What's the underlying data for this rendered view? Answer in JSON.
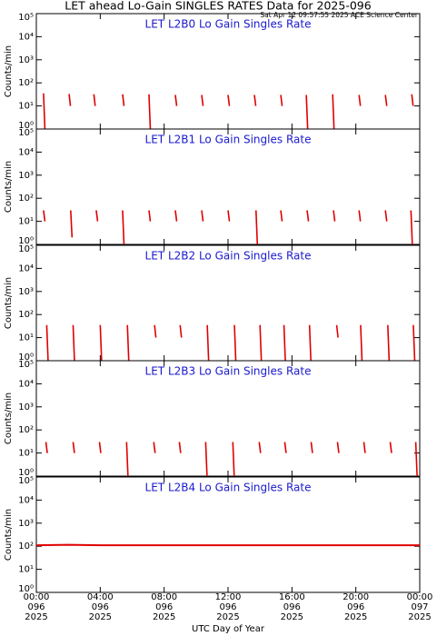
{
  "figure": {
    "title": "LET ahead Lo-Gain SINGLES RATES Data for 2025-096",
    "timestamp": "Sat Apr 12 09:57:55 2025 ACE Science Center",
    "xlabel": "UTC Day of Year"
  },
  "chart_data": [
    {
      "type": "spike",
      "title": "LET L2B0 Lo Gain Singles Rate",
      "ylabel": "Counts/min",
      "log": true,
      "xlim": [
        0,
        24
      ],
      "ylim": [
        1,
        100000
      ],
      "yticks": [
        {
          "value": 1,
          "label": "10⁰"
        },
        {
          "value": 10,
          "label": "10¹"
        },
        {
          "value": 100,
          "label": "10²"
        },
        {
          "value": 1000,
          "label": "10³"
        },
        {
          "value": 10000,
          "label": "10⁴"
        },
        {
          "value": 100000,
          "label": "10⁵"
        }
      ],
      "series": [
        {
          "color": "#e00000",
          "x": [
            0.45,
            2.05,
            3.6,
            5.4,
            7.05,
            8.7,
            10.35,
            12.0,
            13.65,
            15.3,
            16.9,
            18.55,
            20.2,
            21.85,
            23.5
          ],
          "values": [
            35,
            33,
            32,
            32,
            32,
            30,
            30,
            30,
            30,
            30,
            30,
            32,
            30,
            30,
            32
          ],
          "lows": [
            1,
            10,
            10,
            10,
            1,
            10,
            10,
            10,
            10,
            10,
            1,
            1,
            10,
            10,
            10
          ]
        }
      ]
    },
    {
      "type": "spike",
      "title": "LET L2B1 Lo Gain Singles Rate",
      "ylabel": "Counts/min",
      "log": true,
      "xlim": [
        0,
        24
      ],
      "ylim": [
        1,
        100000
      ],
      "yticks": [
        {
          "value": 1,
          "label": "10⁰"
        },
        {
          "value": 10,
          "label": "10¹"
        },
        {
          "value": 100,
          "label": "10²"
        },
        {
          "value": 1000,
          "label": "10³"
        },
        {
          "value": 10000,
          "label": "10⁴"
        },
        {
          "value": 100000,
          "label": "10⁵"
        }
      ],
      "series": [
        {
          "color": "#e00000",
          "x": [
            0.45,
            2.15,
            3.75,
            5.4,
            7.05,
            8.7,
            10.35,
            12.0,
            13.75,
            15.3,
            16.95,
            18.6,
            20.2,
            21.85,
            23.45
          ],
          "values": [
            30,
            30,
            30,
            30,
            30,
            30,
            30,
            30,
            30,
            30,
            30,
            30,
            30,
            30,
            30
          ],
          "lows": [
            10,
            2,
            10,
            1,
            10,
            10,
            10,
            10,
            1,
            10,
            10,
            10,
            10,
            10,
            1
          ]
        }
      ]
    },
    {
      "type": "spike",
      "title": "LET L2B2 Lo Gain Singles Rate",
      "ylabel": "Counts/min",
      "log": true,
      "xlim": [
        0,
        24
      ],
      "ylim": [
        1,
        100000
      ],
      "yticks": [
        {
          "value": 1,
          "label": "10⁰"
        },
        {
          "value": 10,
          "label": "10¹"
        },
        {
          "value": 100,
          "label": "10²"
        },
        {
          "value": 1000,
          "label": "10³"
        },
        {
          "value": 10000,
          "label": "10⁴"
        },
        {
          "value": 100000,
          "label": "10⁵"
        }
      ],
      "series": [
        {
          "color": "#e00000",
          "x": [
            0.65,
            2.3,
            4.0,
            5.7,
            7.4,
            9.0,
            10.7,
            12.4,
            14.0,
            15.5,
            17.1,
            18.8,
            20.3,
            22.0,
            23.6
          ],
          "values": [
            35,
            35,
            35,
            35,
            35,
            35,
            35,
            35,
            35,
            35,
            35,
            35,
            35,
            35,
            35
          ],
          "lows": [
            1,
            1,
            1,
            1,
            10,
            10,
            1,
            1,
            1,
            1,
            1,
            10,
            1,
            1,
            1
          ]
        }
      ]
    },
    {
      "type": "spike",
      "title": "LET L2B3 Lo Gain Singles Rate",
      "ylabel": "Counts/min",
      "log": true,
      "xlim": [
        0,
        24
      ],
      "ylim": [
        1,
        100000
      ],
      "yticks": [
        {
          "value": 1,
          "label": "10⁰"
        },
        {
          "value": 10,
          "label": "10¹"
        },
        {
          "value": 100,
          "label": "10²"
        },
        {
          "value": 1000,
          "label": "10³"
        },
        {
          "value": 10000,
          "label": "10⁴"
        },
        {
          "value": 100000,
          "label": "10⁵"
        }
      ],
      "series": [
        {
          "color": "#e00000",
          "x": [
            0.6,
            2.3,
            3.95,
            5.65,
            7.35,
            8.95,
            10.6,
            12.3,
            13.95,
            15.55,
            17.2,
            18.85,
            20.5,
            22.15,
            23.75
          ],
          "values": [
            30,
            30,
            30,
            30,
            30,
            30,
            30,
            30,
            30,
            30,
            30,
            30,
            30,
            30,
            30
          ],
          "lows": [
            10,
            10,
            10,
            1,
            10,
            10,
            1,
            1,
            10,
            10,
            10,
            10,
            10,
            10,
            1
          ]
        }
      ]
    },
    {
      "type": "line",
      "title": "LET L2B4 Lo Gain Singles Rate",
      "ylabel": "Counts/min",
      "log": true,
      "xlim": [
        0,
        24
      ],
      "ylim": [
        1,
        100000
      ],
      "yticks": [
        {
          "value": 1,
          "label": "10⁰"
        },
        {
          "value": 10,
          "label": "10¹"
        },
        {
          "value": 100,
          "label": "10²"
        },
        {
          "value": 1000,
          "label": "10³"
        },
        {
          "value": 10000,
          "label": "10⁴"
        },
        {
          "value": 100000,
          "label": "10⁵"
        }
      ],
      "xticks": [
        {
          "value": 0,
          "label": "00:00"
        },
        {
          "value": 4,
          "label": "04:00"
        },
        {
          "value": 8,
          "label": "08:00"
        },
        {
          "value": 12,
          "label": "12:00"
        },
        {
          "value": 16,
          "label": "16:00"
        },
        {
          "value": 20,
          "label": "20:00"
        },
        {
          "value": 24,
          "label": "00:00"
        }
      ],
      "xtick_days": [
        "096",
        "096",
        "096",
        "096",
        "096",
        "096",
        "097"
      ],
      "xtick_years": [
        "2025",
        "2025",
        "2025",
        "2025",
        "2025",
        "2025",
        "2025"
      ],
      "series": [
        {
          "color": "#e00000",
          "x": [
            0,
            2,
            4,
            6,
            8,
            10,
            12,
            14,
            16,
            18,
            20,
            22,
            24
          ],
          "values": [
            110,
            115,
            110,
            110,
            110,
            110,
            110,
            110,
            110,
            110,
            110,
            110,
            110
          ]
        }
      ]
    }
  ]
}
